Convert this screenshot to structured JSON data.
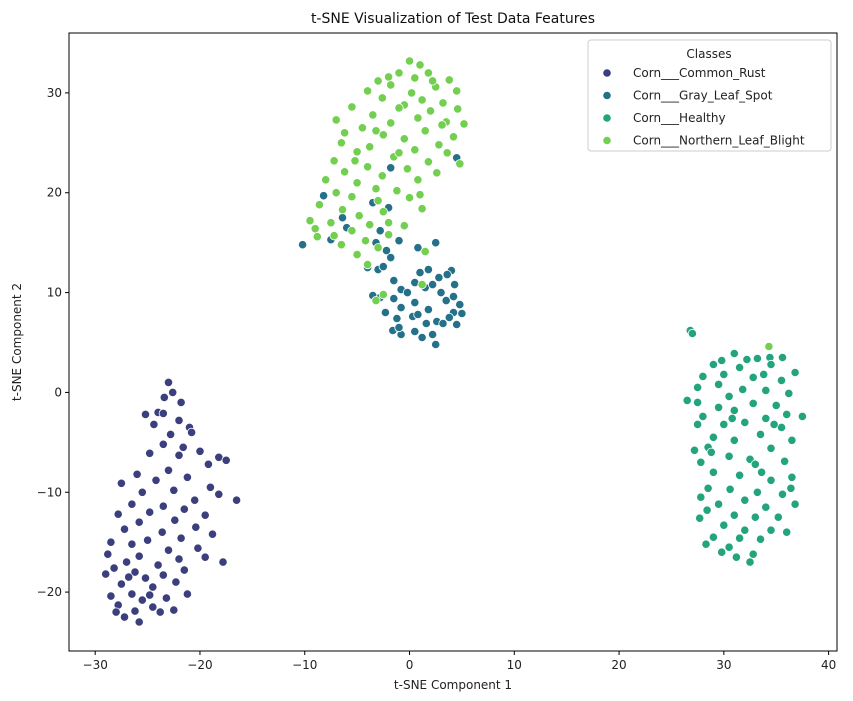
{
  "chart_data": {
    "type": "scatter",
    "title": "t-SNE Visualization of Test Data Features",
    "xlabel": "t-SNE Component 1",
    "ylabel": "t-SNE Component 2",
    "xlim": [
      -32.5,
      40.8
    ],
    "ylim": [
      -25.9,
      36.0
    ],
    "xticks": [
      -30,
      -20,
      -10,
      0,
      10,
      20,
      30,
      40
    ],
    "yticks": [
      -20,
      -10,
      0,
      10,
      20,
      30
    ],
    "xtick_labels": [
      "−30",
      "−20",
      "−10",
      "0",
      "10",
      "20",
      "30",
      "40"
    ],
    "ytick_labels": [
      "−20",
      "−10",
      "0",
      "10",
      "20",
      "30"
    ],
    "grid": false,
    "legend": {
      "title": "Classes",
      "placement": "top-right"
    },
    "series": [
      {
        "name": "Corn___Common_Rust",
        "color": "#3b3f7d",
        "points": [
          [
            -23,
            1
          ],
          [
            -22.6,
            0
          ],
          [
            -23.4,
            -0.5
          ],
          [
            -21.8,
            -1
          ],
          [
            -24,
            -2
          ],
          [
            -25.2,
            -2.2
          ],
          [
            -23.5,
            -2.1
          ],
          [
            -22,
            -2.8
          ],
          [
            -21,
            -3.5
          ],
          [
            -24.4,
            -3.2
          ],
          [
            -20.8,
            -4
          ],
          [
            -22.8,
            -4.2
          ],
          [
            -23.5,
            -5.2
          ],
          [
            -21.6,
            -5.5
          ],
          [
            -20,
            -5.9
          ],
          [
            -24.8,
            -6.1
          ],
          [
            -22,
            -6.3
          ],
          [
            -18.2,
            -6.5
          ],
          [
            -17.5,
            -6.8
          ],
          [
            -19.2,
            -7.2
          ],
          [
            -23,
            -7.8
          ],
          [
            -26,
            -8.2
          ],
          [
            -21.2,
            -8.5
          ],
          [
            -24.2,
            -8.8
          ],
          [
            -27.5,
            -9.1
          ],
          [
            -19,
            -9.5
          ],
          [
            -22.5,
            -9.8
          ],
          [
            -25.5,
            -10
          ],
          [
            -18.2,
            -10.2
          ],
          [
            -20.5,
            -10.8
          ],
          [
            -16.5,
            -10.8
          ],
          [
            -26.5,
            -11.2
          ],
          [
            -23.5,
            -11.4
          ],
          [
            -21.5,
            -11.7
          ],
          [
            -24.8,
            -12
          ],
          [
            -27.8,
            -12.2
          ],
          [
            -19.5,
            -12.3
          ],
          [
            -22.4,
            -12.8
          ],
          [
            -25.8,
            -13
          ],
          [
            -20.4,
            -13.5
          ],
          [
            -27.2,
            -13.7
          ],
          [
            -23.6,
            -14
          ],
          [
            -18.8,
            -14.2
          ],
          [
            -21.8,
            -14.6
          ],
          [
            -25,
            -14.8
          ],
          [
            -28.5,
            -15
          ],
          [
            -26.5,
            -15.2
          ],
          [
            -20.2,
            -15.6
          ],
          [
            -23,
            -15.8
          ],
          [
            -28.8,
            -16.2
          ],
          [
            -25.8,
            -16.4
          ],
          [
            -22,
            -16.7
          ],
          [
            -19.5,
            -16.5
          ],
          [
            -27,
            -17
          ],
          [
            -17.8,
            -17
          ],
          [
            -24,
            -17.3
          ],
          [
            -28.2,
            -17.6
          ],
          [
            -21.5,
            -17.8
          ],
          [
            -26.2,
            -18
          ],
          [
            -23.5,
            -18.3
          ],
          [
            -29,
            -18.2
          ],
          [
            -25.2,
            -18.6
          ],
          [
            -22.3,
            -19
          ],
          [
            -27.5,
            -19.2
          ],
          [
            -24.5,
            -19.5
          ],
          [
            -21.2,
            -20.2
          ],
          [
            -26.5,
            -20.2
          ],
          [
            -28.5,
            -20.4
          ],
          [
            -23.2,
            -20.6
          ],
          [
            -25.5,
            -20.8
          ],
          [
            -27.8,
            -21.3
          ],
          [
            -24.5,
            -21.5
          ],
          [
            -22.5,
            -21.8
          ],
          [
            -26.2,
            -21.9
          ],
          [
            -28,
            -22
          ],
          [
            -23.8,
            -22
          ],
          [
            -27.2,
            -22.5
          ],
          [
            -25.8,
            -23
          ],
          [
            -24.8,
            -20.3
          ],
          [
            -26.8,
            -18.5
          ]
        ]
      },
      {
        "name": "Corn___Gray_Leaf_Spot",
        "color": "#26718a",
        "points": [
          [
            4.5,
            23.5
          ],
          [
            -1.8,
            22.5
          ],
          [
            -8.2,
            19.7
          ],
          [
            -3.5,
            19
          ],
          [
            -2,
            18.5
          ],
          [
            -6.4,
            17.5
          ],
          [
            -6,
            16.5
          ],
          [
            -2.8,
            16.2
          ],
          [
            -10.2,
            14.8
          ],
          [
            -3.2,
            15
          ],
          [
            -1,
            15.2
          ],
          [
            -7.5,
            15.3
          ],
          [
            2.5,
            15
          ],
          [
            0.8,
            14.5
          ],
          [
            -2.2,
            14.2
          ],
          [
            -1.8,
            13.5
          ],
          [
            -4,
            12.5
          ],
          [
            -3,
            12.3
          ],
          [
            -2.5,
            12.6
          ],
          [
            1.8,
            12.3
          ],
          [
            4,
            12.2
          ],
          [
            3.6,
            11.8
          ],
          [
            2.8,
            11.5
          ],
          [
            -1.5,
            11.2
          ],
          [
            0.5,
            11
          ],
          [
            4.3,
            10.8
          ],
          [
            1.5,
            10.5
          ],
          [
            -0.8,
            10.3
          ],
          [
            3,
            10
          ],
          [
            -3.5,
            9.7
          ],
          [
            -2.5,
            9.8
          ],
          [
            -1.5,
            9.4
          ],
          [
            3.5,
            9.2
          ],
          [
            0.5,
            9
          ],
          [
            4.8,
            8.8
          ],
          [
            -0.8,
            8.5
          ],
          [
            1.8,
            8.3
          ],
          [
            -2.3,
            8
          ],
          [
            4.2,
            8
          ],
          [
            5,
            7.9
          ],
          [
            0.3,
            7.6
          ],
          [
            3.8,
            7.5
          ],
          [
            -1.2,
            7.4
          ],
          [
            2.6,
            7.1
          ],
          [
            1.6,
            6.9
          ],
          [
            4.5,
            6.8
          ],
          [
            -1.6,
            6.2
          ],
          [
            0.5,
            6.1
          ],
          [
            2.2,
            5.8
          ],
          [
            -0.8,
            5.8
          ],
          [
            1.2,
            5.5
          ],
          [
            2.5,
            4.8
          ],
          [
            -1,
            6.5
          ],
          [
            0.8,
            7.8
          ],
          [
            3.2,
            6.9
          ],
          [
            -2.8,
            9.5
          ],
          [
            1,
            12
          ],
          [
            -0.2,
            10
          ],
          [
            4.2,
            9.6
          ],
          [
            2.2,
            10.8
          ]
        ]
      },
      {
        "name": "Corn___Healthy",
        "color": "#24a47e",
        "points": [
          [
            26.8,
            6.2
          ],
          [
            27,
            5.9
          ],
          [
            31,
            3.9
          ],
          [
            32.2,
            3.3
          ],
          [
            33.2,
            3.4
          ],
          [
            34.4,
            3.5
          ],
          [
            35.6,
            3.5
          ],
          [
            34.5,
            2.8
          ],
          [
            31.5,
            2.5
          ],
          [
            29,
            2.8
          ],
          [
            36.8,
            2
          ],
          [
            28,
            1.6
          ],
          [
            30,
            1.8
          ],
          [
            32.8,
            1.5
          ],
          [
            35.5,
            1.2
          ],
          [
            27.5,
            0.5
          ],
          [
            29.5,
            0.8
          ],
          [
            31.8,
            0.3
          ],
          [
            34,
            0.2
          ],
          [
            36.2,
            -0.1
          ],
          [
            30.5,
            -0.4
          ],
          [
            26.5,
            -0.8
          ],
          [
            27.5,
            -1
          ],
          [
            32.8,
            -1.1
          ],
          [
            35,
            -1.3
          ],
          [
            29.5,
            -1.5
          ],
          [
            31,
            -1.8
          ],
          [
            36,
            -2.2
          ],
          [
            28,
            -2.4
          ],
          [
            37.5,
            -2.4
          ],
          [
            34,
            -2.6
          ],
          [
            30,
            -3.2
          ],
          [
            32,
            -3
          ],
          [
            27.5,
            -3.2
          ],
          [
            35.5,
            -3.5
          ],
          [
            29,
            -4.5
          ],
          [
            33.5,
            -4.2
          ],
          [
            31,
            -4.8
          ],
          [
            36.5,
            -4.8
          ],
          [
            28.5,
            -5.5
          ],
          [
            34.5,
            -5.6
          ],
          [
            30.5,
            -6.4
          ],
          [
            32.5,
            -6.7
          ],
          [
            35.8,
            -6.9
          ],
          [
            27.8,
            -7
          ],
          [
            33,
            -7.2
          ],
          [
            29,
            -8
          ],
          [
            31.5,
            -8.3
          ],
          [
            34.5,
            -8.8
          ],
          [
            36.5,
            -8.5
          ],
          [
            28.5,
            -9.6
          ],
          [
            30.6,
            -9.7
          ],
          [
            33.2,
            -10
          ],
          [
            35.6,
            -10.2
          ],
          [
            27.8,
            -10.5
          ],
          [
            32,
            -10.8
          ],
          [
            29.5,
            -11.2
          ],
          [
            34,
            -11.5
          ],
          [
            36.8,
            -11.2
          ],
          [
            28.4,
            -11.8
          ],
          [
            31,
            -12.3
          ],
          [
            33,
            -12.5
          ],
          [
            35.2,
            -12.5
          ],
          [
            27.7,
            -12.6
          ],
          [
            30,
            -13.3
          ],
          [
            32,
            -13.8
          ],
          [
            34.5,
            -13.8
          ],
          [
            29,
            -14.5
          ],
          [
            31.5,
            -14.6
          ],
          [
            33.5,
            -14.7
          ],
          [
            28.3,
            -15.2
          ],
          [
            30.5,
            -15.5
          ],
          [
            32.8,
            -16.2
          ],
          [
            29.8,
            -16
          ],
          [
            31.2,
            -16.5
          ],
          [
            32.5,
            -17
          ],
          [
            36,
            -14
          ],
          [
            28.8,
            -6
          ],
          [
            34.8,
            -3.2
          ],
          [
            30.8,
            -2.6
          ],
          [
            33.8,
            1.8
          ],
          [
            29.8,
            3.2
          ],
          [
            27.2,
            -5.8
          ],
          [
            36.4,
            -9.6
          ],
          [
            33.6,
            -8
          ]
        ]
      },
      {
        "name": "Corn___Northern_Leaf_Blight",
        "color": "#73cf4f",
        "points": [
          [
            0,
            33.2
          ],
          [
            1,
            32.8
          ],
          [
            -1,
            32
          ],
          [
            -2,
            31.6
          ],
          [
            1.8,
            32
          ],
          [
            -3,
            31.2
          ],
          [
            0.5,
            31.5
          ],
          [
            3.8,
            31.3
          ],
          [
            -1.8,
            30.8
          ],
          [
            2.5,
            30.6
          ],
          [
            -4,
            30.2
          ],
          [
            0.2,
            30
          ],
          [
            4.5,
            30.2
          ],
          [
            -2.6,
            29.5
          ],
          [
            1.2,
            29.3
          ],
          [
            3.2,
            29
          ],
          [
            -0.5,
            28.8
          ],
          [
            -5.5,
            28.6
          ],
          [
            2,
            28.2
          ],
          [
            4.6,
            28.4
          ],
          [
            -3.5,
            27.8
          ],
          [
            -7,
            27.3
          ],
          [
            0.8,
            27.5
          ],
          [
            3.5,
            27.1
          ],
          [
            -1.8,
            27
          ],
          [
            5.2,
            26.9
          ],
          [
            -4.5,
            26.5
          ],
          [
            -6.2,
            26
          ],
          [
            1.5,
            26.2
          ],
          [
            -2.5,
            25.8
          ],
          [
            4.2,
            25.6
          ],
          [
            -0.5,
            25.4
          ],
          [
            -6.5,
            25
          ],
          [
            2.8,
            24.8
          ],
          [
            -3.8,
            24.6
          ],
          [
            0.5,
            24.3
          ],
          [
            -5,
            24.1
          ],
          [
            3.6,
            24
          ],
          [
            -1.5,
            23.6
          ],
          [
            -7.2,
            23.2
          ],
          [
            1.8,
            23.1
          ],
          [
            4.8,
            22.9
          ],
          [
            -4,
            22.6
          ],
          [
            -0.2,
            22.4
          ],
          [
            -6.2,
            22.1
          ],
          [
            2.6,
            22
          ],
          [
            -2.6,
            21.7
          ],
          [
            -8,
            21.3
          ],
          [
            0.8,
            21.3
          ],
          [
            -5,
            21
          ],
          [
            -3.2,
            20.4
          ],
          [
            -1.2,
            20.2
          ],
          [
            -7,
            20
          ],
          [
            1,
            19.8
          ],
          [
            -5.5,
            19.6
          ],
          [
            -3,
            19.2
          ],
          [
            -8.6,
            18.8
          ],
          [
            1.2,
            18.4
          ],
          [
            -6.4,
            18.3
          ],
          [
            -2.5,
            18.1
          ],
          [
            -4.8,
            17.7
          ],
          [
            -9.5,
            17.2
          ],
          [
            -7.5,
            17
          ],
          [
            -3.8,
            16.8
          ],
          [
            -0.5,
            16.7
          ],
          [
            -9,
            16.4
          ],
          [
            -5.5,
            16.2
          ],
          [
            -7.2,
            15.7
          ],
          [
            -2,
            15.8
          ],
          [
            -4.2,
            15.2
          ],
          [
            -6.5,
            14.8
          ],
          [
            -3,
            14.5
          ],
          [
            -5,
            13.8
          ],
          [
            -4,
            12.8
          ],
          [
            1.5,
            14.1
          ],
          [
            -8.8,
            15.6
          ],
          [
            -2.5,
            9.8
          ],
          [
            -3.2,
            9.2
          ],
          [
            1.2,
            10.8
          ],
          [
            34.3,
            4.6
          ],
          [
            -1,
            28.5
          ],
          [
            2.2,
            31.2
          ],
          [
            -3.2,
            26.2
          ],
          [
            0,
            19.5
          ],
          [
            -1,
            24
          ],
          [
            3.1,
            26.8
          ],
          [
            -5.2,
            23.2
          ],
          [
            -2,
            17
          ]
        ]
      }
    ]
  }
}
